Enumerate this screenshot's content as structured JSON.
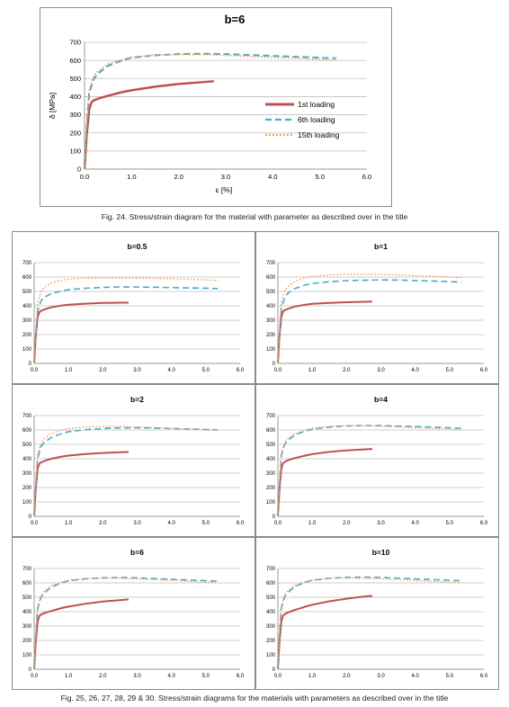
{
  "colors": {
    "first_loading": "#c0504d",
    "sixth_loading": "#4bacc6",
    "fifteenth_loading": "#f79646",
    "grid": "#bfbfbf"
  },
  "captions": {
    "top": "Fig. 24. Stress/strain diagram for the material with parameter as described over in the title",
    "bottom": "Fig. 25, 26, 27, 28, 29 & 30. Stress/strain diagrams for the materials with parameters as described over in the title"
  },
  "chart_data": [
    {
      "id": "main",
      "type": "line",
      "title": "b=6",
      "xlabel": "ε [%]",
      "ylabel": "δ [MPa]",
      "xlim": [
        0,
        6
      ],
      "ylim": [
        0,
        700
      ],
      "xticks": [
        "0.0",
        "1.0",
        "2.0",
        "3.0",
        "4.0",
        "5.0",
        "6.0"
      ],
      "yticks": [
        "0",
        "100",
        "200",
        "300",
        "400",
        "500",
        "600",
        "700"
      ],
      "grid": "horizontal",
      "legend": "right",
      "series": [
        {
          "name": "1st loading",
          "style": "solid",
          "x": [
            0,
            0.05,
            0.1,
            0.15,
            0.2,
            0.3,
            0.5,
            0.8,
            1.0,
            1.5,
            2.0,
            2.5,
            2.75
          ],
          "y": [
            0,
            200,
            330,
            370,
            380,
            390,
            405,
            425,
            435,
            455,
            470,
            480,
            485
          ]
        },
        {
          "name": "6th loading",
          "style": "dashed",
          "x": [
            0,
            0.05,
            0.1,
            0.2,
            0.3,
            0.5,
            0.8,
            1.0,
            1.5,
            2.0,
            2.5,
            3.0,
            3.5,
            4.0,
            4.5,
            5.0,
            5.35
          ],
          "y": [
            0,
            250,
            420,
            500,
            530,
            570,
            600,
            615,
            628,
            635,
            637,
            635,
            630,
            625,
            620,
            615,
            612
          ]
        },
        {
          "name": "15th loading",
          "style": "dotted",
          "x": [
            0,
            0.05,
            0.1,
            0.2,
            0.3,
            0.5,
            0.8,
            1.0,
            1.5,
            2.0,
            2.5,
            3.0,
            3.5,
            4.0,
            4.5,
            5.0,
            5.35
          ],
          "y": [
            0,
            260,
            440,
            515,
            545,
            580,
            605,
            618,
            630,
            633,
            632,
            628,
            622,
            617,
            612,
            605,
            600
          ]
        }
      ]
    },
    {
      "id": "b05",
      "type": "line",
      "title": "b=0.5",
      "xlim": [
        0,
        6
      ],
      "ylim": [
        0,
        700
      ],
      "xticks": [
        "0.0",
        "1.0",
        "2.0",
        "3.0",
        "4.0",
        "5.0",
        "6.0"
      ],
      "yticks": [
        "0",
        "100",
        "200",
        "300",
        "400",
        "500",
        "600",
        "700"
      ],
      "grid": "horizontal",
      "series": [
        {
          "name": "1st loading",
          "style": "solid",
          "x": [
            0,
            0.05,
            0.1,
            0.15,
            0.2,
            0.3,
            0.5,
            0.8,
            1.0,
            1.5,
            2.0,
            2.5,
            2.75
          ],
          "y": [
            0,
            200,
            320,
            355,
            365,
            375,
            390,
            402,
            408,
            415,
            420,
            422,
            423
          ]
        },
        {
          "name": "6th loading",
          "style": "dashed",
          "x": [
            0,
            0.05,
            0.1,
            0.2,
            0.3,
            0.5,
            0.8,
            1.0,
            1.5,
            2.0,
            2.5,
            3.0,
            3.5,
            4.0,
            4.5,
            5.0,
            5.35
          ],
          "y": [
            0,
            200,
            360,
            435,
            460,
            485,
            503,
            512,
            522,
            528,
            531,
            531,
            529,
            527,
            524,
            522,
            520
          ]
        },
        {
          "name": "15th loading",
          "style": "dotted",
          "x": [
            0,
            0.05,
            0.1,
            0.2,
            0.3,
            0.5,
            0.8,
            1.0,
            1.5,
            2.0,
            2.5,
            3.0,
            3.5,
            4.0,
            4.5,
            5.0,
            5.35
          ],
          "y": [
            0,
            250,
            420,
            500,
            530,
            560,
            578,
            585,
            592,
            594,
            594,
            593,
            591,
            588,
            585,
            580,
            575
          ]
        }
      ]
    },
    {
      "id": "b1",
      "type": "line",
      "title": "b=1",
      "xlim": [
        0,
        6
      ],
      "ylim": [
        0,
        700
      ],
      "xticks": [
        "0.0",
        "1.0",
        "2.0",
        "3.0",
        "4.0",
        "5.0",
        "6.0"
      ],
      "yticks": [
        "0",
        "100",
        "200",
        "300",
        "400",
        "500",
        "600",
        "700"
      ],
      "grid": "horizontal",
      "series": [
        {
          "name": "1st loading",
          "style": "solid",
          "x": [
            0,
            0.05,
            0.1,
            0.15,
            0.2,
            0.3,
            0.5,
            0.8,
            1.0,
            1.5,
            2.0,
            2.5,
            2.75
          ],
          "y": [
            0,
            200,
            325,
            360,
            370,
            380,
            395,
            408,
            414,
            420,
            425,
            428,
            430
          ]
        },
        {
          "name": "6th loading",
          "style": "dashed",
          "x": [
            0,
            0.05,
            0.1,
            0.2,
            0.3,
            0.5,
            0.8,
            1.0,
            1.5,
            2.0,
            2.5,
            3.0,
            3.5,
            4.0,
            4.5,
            5.0,
            5.35
          ],
          "y": [
            0,
            200,
            380,
            460,
            490,
            520,
            545,
            555,
            568,
            575,
            578,
            580,
            579,
            576,
            572,
            568,
            565
          ]
        },
        {
          "name": "15th loading",
          "style": "dotted",
          "x": [
            0,
            0.05,
            0.1,
            0.2,
            0.3,
            0.5,
            0.8,
            1.0,
            1.5,
            2.0,
            2.5,
            3.0,
            3.5,
            4.0,
            4.5,
            5.0,
            5.35
          ],
          "y": [
            0,
            250,
            430,
            505,
            535,
            570,
            595,
            605,
            615,
            620,
            620,
            618,
            615,
            610,
            606,
            600,
            595
          ]
        }
      ]
    },
    {
      "id": "b2",
      "type": "line",
      "title": "b=2",
      "xlim": [
        0,
        6
      ],
      "ylim": [
        0,
        700
      ],
      "xticks": [
        "0.0",
        "1.0",
        "2.0",
        "3.0",
        "4.0",
        "5.0",
        "6.0"
      ],
      "yticks": [
        "0",
        "100",
        "200",
        "300",
        "400",
        "500",
        "600",
        "700"
      ],
      "grid": "horizontal",
      "series": [
        {
          "name": "1st loading",
          "style": "solid",
          "x": [
            0,
            0.05,
            0.1,
            0.15,
            0.2,
            0.3,
            0.5,
            0.8,
            1.0,
            1.5,
            2.0,
            2.5,
            2.75
          ],
          "y": [
            0,
            200,
            330,
            365,
            375,
            385,
            400,
            415,
            422,
            433,
            440,
            445,
            447
          ]
        },
        {
          "name": "6th loading",
          "style": "dashed",
          "x": [
            0,
            0.05,
            0.1,
            0.2,
            0.3,
            0.5,
            0.8,
            1.0,
            1.5,
            2.0,
            2.5,
            3.0,
            3.5,
            4.0,
            4.5,
            5.0,
            5.35
          ],
          "y": [
            0,
            220,
            400,
            485,
            515,
            548,
            575,
            588,
            602,
            610,
            614,
            615,
            613,
            610,
            607,
            603,
            600
          ]
        },
        {
          "name": "15th loading",
          "style": "dotted",
          "x": [
            0,
            0.05,
            0.1,
            0.2,
            0.3,
            0.5,
            0.8,
            1.0,
            1.5,
            2.0,
            2.5,
            3.0,
            3.5,
            4.0,
            4.5,
            5.0,
            5.35
          ],
          "y": [
            0,
            250,
            430,
            510,
            540,
            575,
            600,
            610,
            620,
            625,
            624,
            621,
            617,
            612,
            607,
            602,
            598
          ]
        }
      ]
    },
    {
      "id": "b4",
      "type": "line",
      "title": "b=4",
      "xlim": [
        0,
        6
      ],
      "ylim": [
        0,
        700
      ],
      "xticks": [
        "0.0",
        "1.0",
        "2.0",
        "3.0",
        "4.0",
        "5.0",
        "6.0"
      ],
      "yticks": [
        "0",
        "100",
        "200",
        "300",
        "400",
        "500",
        "600",
        "700"
      ],
      "grid": "horizontal",
      "series": [
        {
          "name": "1st loading",
          "style": "solid",
          "x": [
            0,
            0.05,
            0.1,
            0.15,
            0.2,
            0.3,
            0.5,
            0.8,
            1.0,
            1.5,
            2.0,
            2.5,
            2.75
          ],
          "y": [
            0,
            200,
            330,
            368,
            378,
            390,
            405,
            422,
            432,
            448,
            458,
            465,
            468
          ]
        },
        {
          "name": "6th loading",
          "style": "dashed",
          "x": [
            0,
            0.05,
            0.1,
            0.2,
            0.3,
            0.5,
            0.8,
            1.0,
            1.5,
            2.0,
            2.5,
            3.0,
            3.5,
            4.0,
            4.5,
            5.0,
            5.35
          ],
          "y": [
            0,
            240,
            420,
            500,
            530,
            565,
            593,
            605,
            620,
            628,
            630,
            630,
            627,
            624,
            620,
            615,
            612
          ]
        },
        {
          "name": "15th loading",
          "style": "dotted",
          "x": [
            0,
            0.05,
            0.1,
            0.2,
            0.3,
            0.5,
            0.8,
            1.0,
            1.5,
            2.0,
            2.5,
            3.0,
            3.5,
            4.0,
            4.5,
            5.0,
            5.35
          ],
          "y": [
            0,
            255,
            435,
            512,
            542,
            575,
            600,
            612,
            625,
            630,
            630,
            626,
            621,
            616,
            611,
            605,
            600
          ]
        }
      ]
    },
    {
      "id": "b6",
      "type": "line",
      "title": "b=6",
      "xlim": [
        0,
        6
      ],
      "ylim": [
        0,
        700
      ],
      "xticks": [
        "0.0",
        "1.0",
        "2.0",
        "3.0",
        "4.0",
        "5.0",
        "6.0"
      ],
      "yticks": [
        "0",
        "100",
        "200",
        "300",
        "400",
        "500",
        "600",
        "700"
      ],
      "grid": "horizontal",
      "series": [
        {
          "name": "1st loading",
          "style": "solid",
          "x": [
            0,
            0.05,
            0.1,
            0.15,
            0.2,
            0.3,
            0.5,
            0.8,
            1.0,
            1.5,
            2.0,
            2.5,
            2.75
          ],
          "y": [
            0,
            200,
            330,
            370,
            380,
            390,
            405,
            425,
            435,
            455,
            470,
            480,
            485
          ]
        },
        {
          "name": "6th loading",
          "style": "dashed",
          "x": [
            0,
            0.05,
            0.1,
            0.2,
            0.3,
            0.5,
            0.8,
            1.0,
            1.5,
            2.0,
            2.5,
            3.0,
            3.5,
            4.0,
            4.5,
            5.0,
            5.35
          ],
          "y": [
            0,
            250,
            420,
            500,
            530,
            570,
            600,
            615,
            628,
            635,
            637,
            635,
            630,
            625,
            620,
            615,
            612
          ]
        },
        {
          "name": "15th loading",
          "style": "dotted",
          "x": [
            0,
            0.05,
            0.1,
            0.2,
            0.3,
            0.5,
            0.8,
            1.0,
            1.5,
            2.0,
            2.5,
            3.0,
            3.5,
            4.0,
            4.5,
            5.0,
            5.35
          ],
          "y": [
            0,
            260,
            440,
            515,
            545,
            580,
            605,
            618,
            630,
            633,
            632,
            628,
            622,
            617,
            612,
            605,
            600
          ]
        }
      ]
    },
    {
      "id": "b10",
      "type": "line",
      "title": "b=10",
      "xlim": [
        0,
        6
      ],
      "ylim": [
        0,
        700
      ],
      "xticks": [
        "0.0",
        "1.0",
        "2.0",
        "3.0",
        "4.0",
        "5.0",
        "6.0"
      ],
      "yticks": [
        "0",
        "100",
        "200",
        "300",
        "400",
        "500",
        "600",
        "700"
      ],
      "grid": "horizontal",
      "series": [
        {
          "name": "1st loading",
          "style": "solid",
          "x": [
            0,
            0.05,
            0.1,
            0.15,
            0.2,
            0.3,
            0.5,
            0.8,
            1.0,
            1.5,
            2.0,
            2.5,
            2.75
          ],
          "y": [
            0,
            200,
            330,
            372,
            383,
            395,
            412,
            435,
            448,
            472,
            490,
            505,
            510
          ]
        },
        {
          "name": "6th loading",
          "style": "dashed",
          "x": [
            0,
            0.05,
            0.1,
            0.2,
            0.3,
            0.5,
            0.8,
            1.0,
            1.5,
            2.0,
            2.5,
            3.0,
            3.5,
            4.0,
            4.5,
            5.0,
            5.35
          ],
          "y": [
            0,
            255,
            425,
            505,
            535,
            575,
            605,
            618,
            632,
            638,
            640,
            638,
            633,
            628,
            623,
            618,
            615
          ]
        },
        {
          "name": "15th loading",
          "style": "dotted",
          "x": [
            0,
            0.05,
            0.1,
            0.2,
            0.3,
            0.5,
            0.8,
            1.0,
            1.5,
            2.0,
            2.5,
            3.0,
            3.5,
            4.0,
            4.5,
            5.0,
            5.35
          ],
          "y": [
            0,
            262,
            442,
            518,
            548,
            583,
            607,
            620,
            632,
            634,
            632,
            628,
            622,
            617,
            611,
            605,
            600
          ]
        }
      ]
    }
  ]
}
